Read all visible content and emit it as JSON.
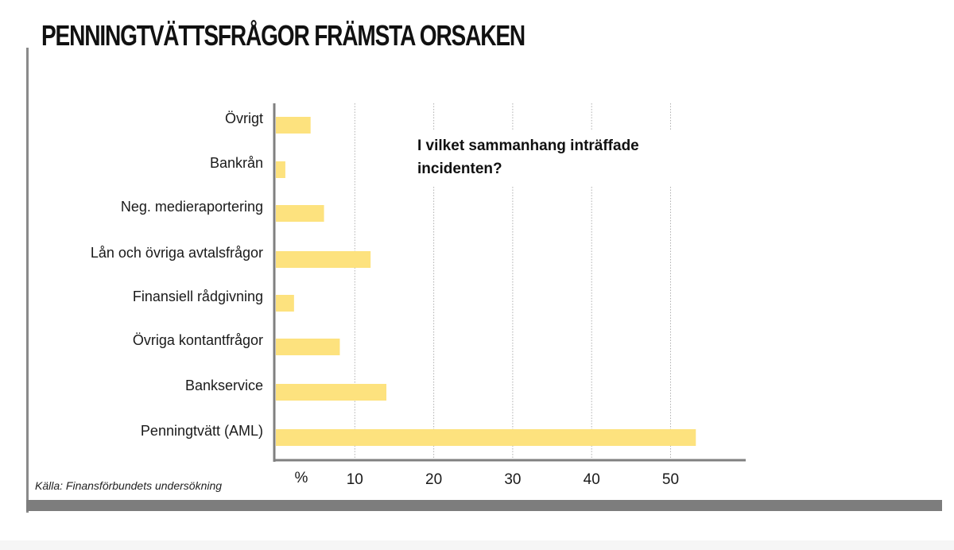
{
  "title": "PENNINGTVÄTTSFRÅGOR FRÄMSTA ORSAKEN",
  "source": "Källa: Finansförbundets undersökning",
  "colors": {
    "bar": "#fde27e",
    "axis": "#808080",
    "grid": "#b0b0b0"
  },
  "chart_data": {
    "type": "bar",
    "orientation": "horizontal",
    "title": "PENNINGTVÄTTSFRÅGOR FRÄMSTA ORSAKEN",
    "annotation": [
      "I vilket sammanhang inträffade",
      "incidenten?"
    ],
    "categories": [
      "Övrigt",
      "Bankrån",
      "Neg. medieraportering",
      "Lån och övriga avtalsfrågor",
      "Finansiell rådgivning",
      "Övriga kontantfrågor",
      "Bankservice",
      "Penningtvätt (AML)"
    ],
    "values": [
      4.4,
      1.2,
      6.1,
      12.0,
      2.3,
      8.1,
      14.0,
      53.2
    ],
    "xlabel": "%",
    "xticks": [
      "10",
      "20",
      "30",
      "40",
      "50"
    ],
    "xtick_values": [
      10,
      20,
      30,
      40,
      50
    ],
    "xlim": [
      0,
      60
    ],
    "grid": true
  }
}
